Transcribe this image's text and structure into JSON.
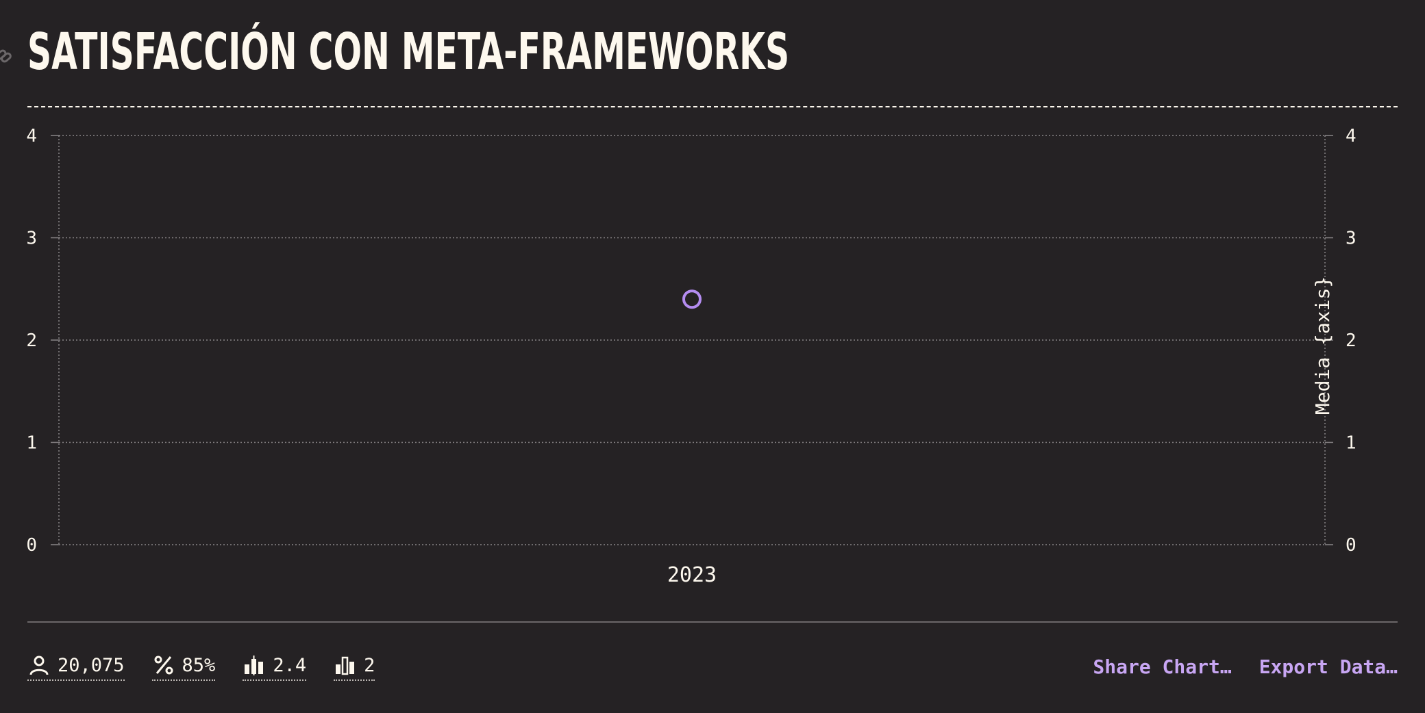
{
  "title": "SATISFACCIÓN CON META-FRAMEWORKS",
  "chart_data": {
    "type": "scatter",
    "categories": [
      "2023"
    ],
    "series": [
      {
        "values": [
          2.4
        ],
        "color": "#b48cf0"
      }
    ],
    "ylim": [
      0,
      4
    ],
    "yticks": [
      0,
      1,
      2,
      3,
      4
    ],
    "y2ticks": [
      0,
      1,
      2,
      3,
      4
    ],
    "y2label": "Media {axis}",
    "grid": true
  },
  "stats": [
    {
      "icon": "user-icon",
      "value": "20,075"
    },
    {
      "icon": "percent-icon",
      "value": "85%"
    },
    {
      "icon": "bar-chart-icon",
      "value": "2.4"
    },
    {
      "icon": "bar-chart-outline-icon",
      "value": "2"
    }
  ],
  "actions": {
    "share_label": "Share Chart…",
    "export_label": "Export Data…"
  },
  "colors": {
    "background": "#252224",
    "text": "#fdf8ee",
    "accent": "#c8a6f3",
    "point": "#b48cf0"
  }
}
